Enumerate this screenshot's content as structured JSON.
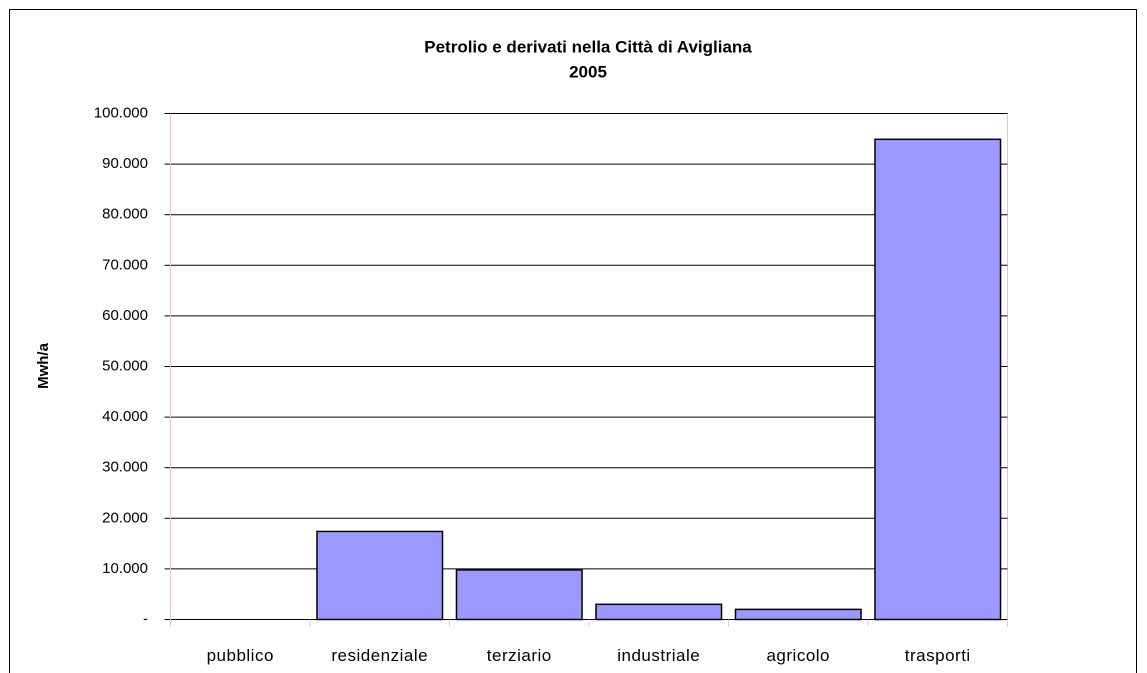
{
  "chart_data": {
    "type": "bar",
    "title": "Petrolio e derivati nella Città di Avigliana",
    "subtitle": "2005",
    "y_label": "Mwh/a",
    "categories": [
      "pubblico",
      "residenziale",
      "terziario",
      "industriale",
      "agricolo",
      "trasporti"
    ],
    "values": [
      0,
      17400,
      9800,
      3000,
      2000,
      94900
    ],
    "color": "#9999ff",
    "ylim": [
      0,
      100000
    ],
    "yticks": [
      {
        "value": 0,
        "label": "-"
      },
      {
        "value": 10000,
        "label": "10.000"
      },
      {
        "value": 20000,
        "label": "20.000"
      },
      {
        "value": 30000,
        "label": "30.000"
      },
      {
        "value": 40000,
        "label": "40.000"
      },
      {
        "value": 50000,
        "label": "50.000"
      },
      {
        "value": 60000,
        "label": "60.000"
      },
      {
        "value": 70000,
        "label": "70.000"
      },
      {
        "value": 80000,
        "label": "80.000"
      },
      {
        "value": 90000,
        "label": "90.000"
      },
      {
        "value": 100000,
        "label": "100.000"
      }
    ],
    "grid": true
  }
}
